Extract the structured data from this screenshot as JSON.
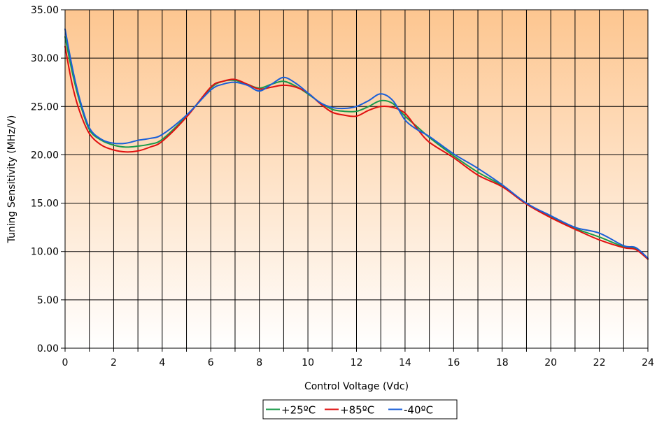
{
  "chart_data": {
    "type": "line",
    "title": "",
    "xlabel": "Control Voltage (Vdc)",
    "ylabel": "Tuning Sensitivity (MHz/V)",
    "xlim": [
      0,
      24
    ],
    "ylim": [
      0,
      35
    ],
    "x_ticks": [
      0,
      2,
      4,
      6,
      8,
      10,
      12,
      14,
      16,
      18,
      20,
      22,
      24
    ],
    "x_tick_labels": [
      "0",
      "2",
      "4",
      "6",
      "8",
      "10",
      "12",
      "14",
      "16",
      "18",
      "20",
      "22",
      "24"
    ],
    "x_gridlines": [
      0,
      1,
      2,
      3,
      4,
      5,
      6,
      7,
      8,
      9,
      10,
      11,
      12,
      13,
      14,
      15,
      16,
      17,
      18,
      19,
      20,
      21,
      22,
      23,
      24
    ],
    "y_ticks": [
      0,
      5,
      10,
      15,
      20,
      25,
      30,
      35
    ],
    "y_tick_labels": [
      "0.00",
      "5.00",
      "10.00",
      "15.00",
      "20.00",
      "25.00",
      "30.00",
      "35.00"
    ],
    "grid": true,
    "plot_background": {
      "top_color": "#FDC690",
      "bottom_color": "#FFFFFF"
    },
    "legend": {
      "position": "bottom-center"
    },
    "series": [
      {
        "name": "+25ºC",
        "color": "#1a9a4a",
        "x": [
          0,
          0.3,
          0.6,
          1,
          1.5,
          2,
          2.5,
          3,
          3.5,
          4,
          5,
          6,
          6.5,
          7,
          7.5,
          8,
          8.5,
          9,
          9.5,
          10,
          10.5,
          11,
          11.5,
          12,
          12.5,
          13,
          13.5,
          14,
          14.5,
          15,
          16,
          17,
          18,
          19,
          20,
          21,
          22,
          23,
          23.5,
          24
        ],
        "y": [
          32.2,
          28.5,
          25.5,
          22.6,
          21.5,
          21.0,
          20.8,
          20.9,
          21.1,
          21.6,
          24.0,
          26.9,
          27.6,
          27.7,
          27.3,
          26.9,
          27.3,
          27.6,
          27.1,
          26.3,
          25.4,
          24.7,
          24.5,
          24.5,
          25.0,
          25.6,
          25.3,
          24.0,
          22.9,
          21.8,
          19.9,
          18.2,
          16.8,
          14.9,
          13.6,
          12.4,
          11.5,
          10.5,
          10.3,
          9.2
        ]
      },
      {
        "name": "+85ºC",
        "color": "#e01010",
        "x": [
          0,
          0.3,
          0.6,
          1,
          1.5,
          2,
          2.5,
          3,
          3.5,
          4,
          5,
          6,
          6.5,
          7,
          7.5,
          8,
          8.5,
          9,
          9.5,
          10,
          10.5,
          11,
          11.5,
          12,
          12.5,
          13,
          13.5,
          14,
          14.5,
          15,
          16,
          17,
          18,
          19,
          20,
          21,
          22,
          23,
          23.5,
          24
        ],
        "y": [
          31.2,
          27.2,
          24.5,
          22.2,
          21.0,
          20.5,
          20.3,
          20.4,
          20.8,
          21.4,
          23.9,
          27.0,
          27.6,
          27.8,
          27.3,
          26.8,
          27.0,
          27.2,
          27.0,
          26.4,
          25.3,
          24.4,
          24.1,
          24.0,
          24.6,
          25.0,
          24.9,
          24.3,
          22.7,
          21.3,
          19.7,
          17.9,
          16.7,
          14.9,
          13.5,
          12.3,
          11.2,
          10.4,
          10.2,
          9.2
        ]
      },
      {
        "name": "-40ºC",
        "color": "#1a5fd8",
        "x": [
          0,
          0.3,
          0.6,
          1,
          1.5,
          2,
          2.5,
          3,
          3.5,
          4,
          5,
          6,
          6.5,
          7,
          7.5,
          8,
          8.5,
          9,
          9.5,
          10,
          10.5,
          11,
          11.5,
          12,
          12.5,
          13,
          13.5,
          14,
          14.5,
          15,
          16,
          17,
          18,
          19,
          20,
          21,
          22,
          23,
          23.5,
          24
        ],
        "y": [
          33.0,
          29.0,
          25.8,
          22.8,
          21.6,
          21.2,
          21.2,
          21.5,
          21.7,
          22.1,
          24.1,
          26.7,
          27.3,
          27.5,
          27.2,
          26.6,
          27.3,
          28.0,
          27.4,
          26.4,
          25.4,
          24.9,
          24.8,
          25.0,
          25.6,
          26.3,
          25.6,
          23.6,
          22.6,
          21.9,
          20.1,
          18.6,
          16.9,
          15.0,
          13.7,
          12.5,
          11.9,
          10.6,
          10.4,
          9.3
        ]
      }
    ]
  }
}
